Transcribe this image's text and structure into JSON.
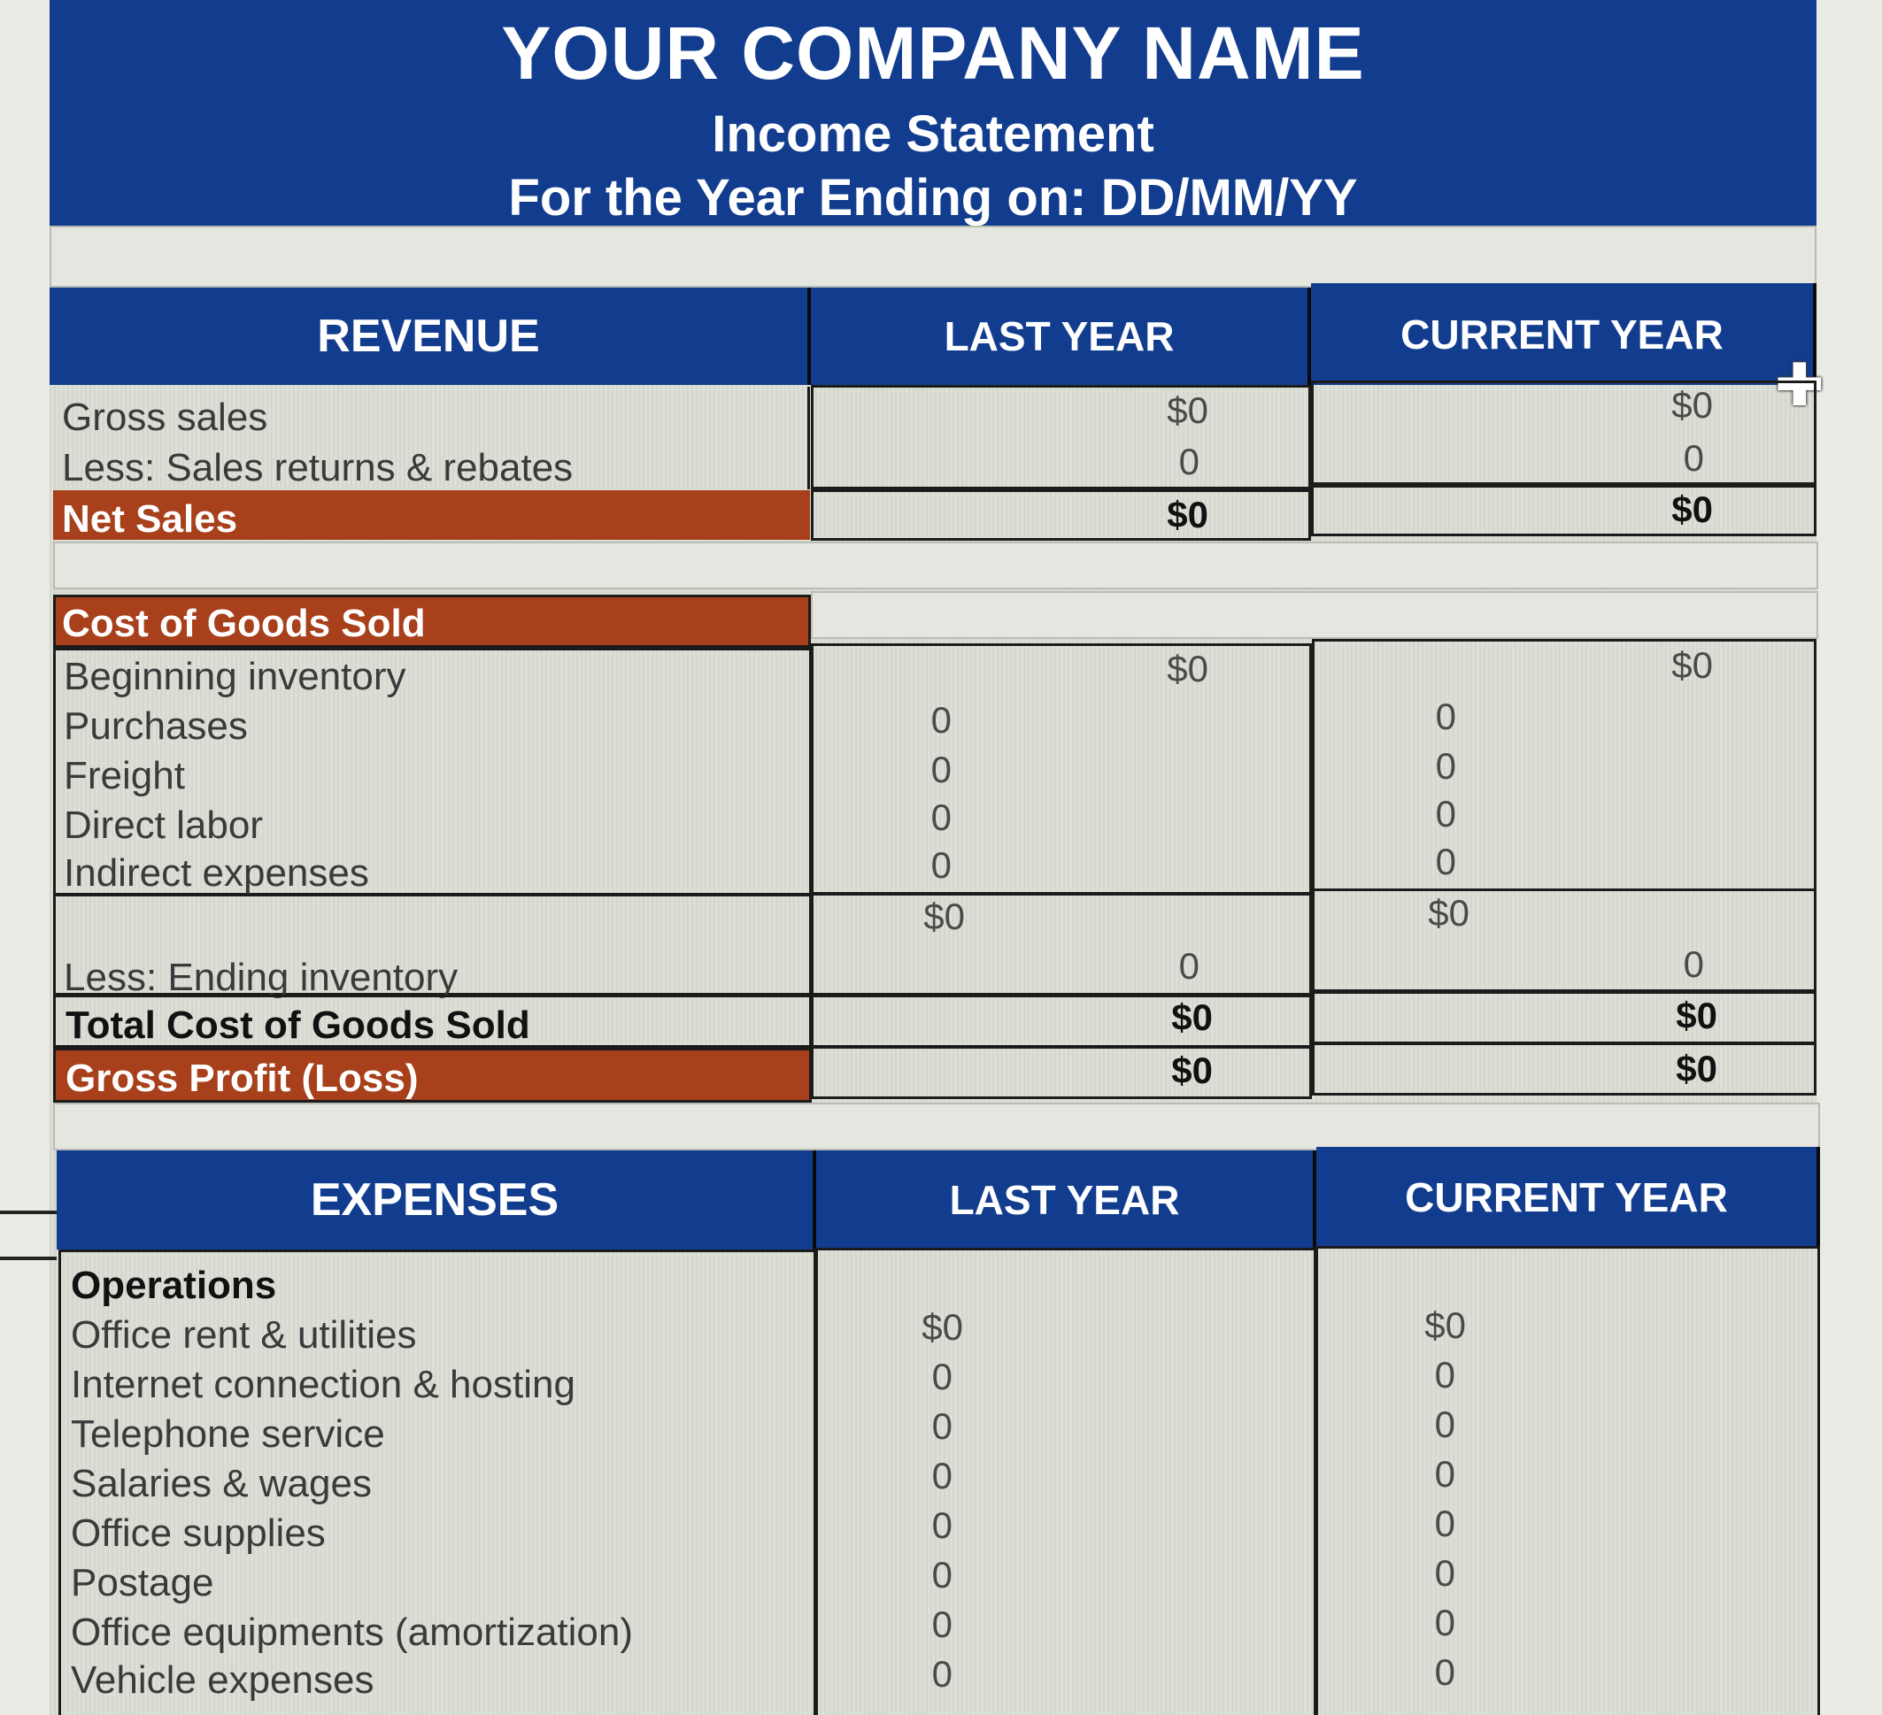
{
  "header": {
    "company": "YOUR COMPANY NAME",
    "statement": "Income Statement",
    "period": "For the Year Ending on: DD/MM/YY"
  },
  "revenue": {
    "heading": "REVENUE",
    "col_last": "LAST YEAR",
    "col_current": "CURRENT YEAR",
    "gross_sales": {
      "label": "Gross sales",
      "last": "$0",
      "current": "$0"
    },
    "returns": {
      "label": "Less: Sales returns & rebates",
      "last": "0",
      "current": "0"
    },
    "net_sales": {
      "label": "Net Sales",
      "last": "$0",
      "current": "$0"
    }
  },
  "cogs": {
    "heading": "Cost of Goods Sold",
    "beginning": {
      "label": "Beginning inventory",
      "last": "$0",
      "current": "$0"
    },
    "purchases": {
      "label": "Purchases",
      "last": "0",
      "current": "0"
    },
    "freight": {
      "label": "Freight",
      "last": "0",
      "current": "0"
    },
    "direct_labor": {
      "label": "Direct labor",
      "last": "0",
      "current": "0"
    },
    "indirect": {
      "label": "Indirect expenses",
      "last": "0",
      "current": "0"
    },
    "subtotal": {
      "last": "$0",
      "current": "$0"
    },
    "ending": {
      "label": "Less: Ending inventory",
      "last": "0",
      "current": "0"
    },
    "total": {
      "label": "Total Cost of Goods Sold",
      "last": "$0",
      "current": "$0"
    },
    "gross_profit": {
      "label": "Gross Profit (Loss)",
      "last": "$0",
      "current": "$0"
    }
  },
  "expenses": {
    "heading": "EXPENSES",
    "col_last": "LAST YEAR",
    "col_current": "CURRENT YEAR",
    "group": "Operations",
    "items": [
      {
        "label": "Office rent & utilities",
        "last": "$0",
        "current": "$0"
      },
      {
        "label": "Internet connection & hosting",
        "last": "0",
        "current": "0"
      },
      {
        "label": "Telephone service",
        "last": "0",
        "current": "0"
      },
      {
        "label": "Salaries & wages",
        "last": "0",
        "current": "0"
      },
      {
        "label": "Office supplies",
        "last": "0",
        "current": "0"
      },
      {
        "label": "Postage",
        "last": "0",
        "current": "0"
      },
      {
        "label": "Office equipments (amortization)",
        "last": "0",
        "current": "0"
      },
      {
        "label": "Vehicle expenses",
        "last": "0",
        "current": "0"
      }
    ]
  },
  "colors": {
    "header_blue": "#123d8f",
    "section_red": "#a8401c"
  },
  "icons": [
    "cell-cursor-plus-icon"
  ]
}
